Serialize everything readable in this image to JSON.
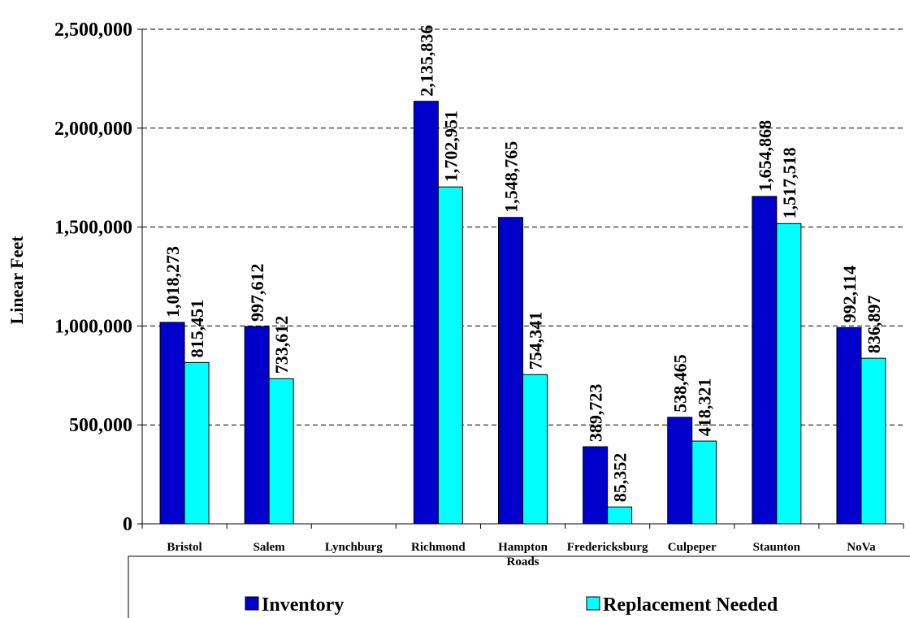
{
  "chart_data": {
    "type": "bar",
    "ylabel": "Linear Feet",
    "xlabel": "",
    "ylim": [
      0,
      2500000
    ],
    "ytick_values": [
      0,
      500000,
      1000000,
      1500000,
      2000000,
      2500000
    ],
    "ytick_labels": [
      "0",
      "500,000",
      "1,000,000",
      "1,500,000",
      "2,000,000",
      "2,500,000"
    ],
    "gridlines": "dashed horizontal",
    "legend_position": "bottom",
    "categories": [
      [
        "Bristol"
      ],
      [
        "Salem"
      ],
      [
        "Lynchburg"
      ],
      [
        "Richmond"
      ],
      [
        "Hampton",
        "Roads"
      ],
      [
        "Fredericksburg"
      ],
      [
        "Culpeper"
      ],
      [
        "Staunton"
      ],
      [
        "NoVa"
      ]
    ],
    "series": [
      {
        "name": "Inventory",
        "color": "#0000CC",
        "values": [
          1018273,
          997612,
          null,
          2135836,
          1548765,
          389723,
          538465,
          1654868,
          992114
        ],
        "labels": [
          "1,018,273",
          "997,612",
          "",
          "2,135,836",
          "1,548,765",
          "389,723",
          "538,465",
          "1,654,868",
          "992,114"
        ]
      },
      {
        "name": "Replacement Needed",
        "color": "#00FFFF",
        "values": [
          815451,
          733612,
          null,
          1702951,
          754341,
          85352,
          418321,
          1517518,
          836897
        ],
        "labels": [
          "815,451",
          "733,612",
          "",
          "1,702,951",
          "754,341",
          "85,352",
          "418,321",
          "1,517,518",
          "836,897"
        ]
      }
    ]
  }
}
